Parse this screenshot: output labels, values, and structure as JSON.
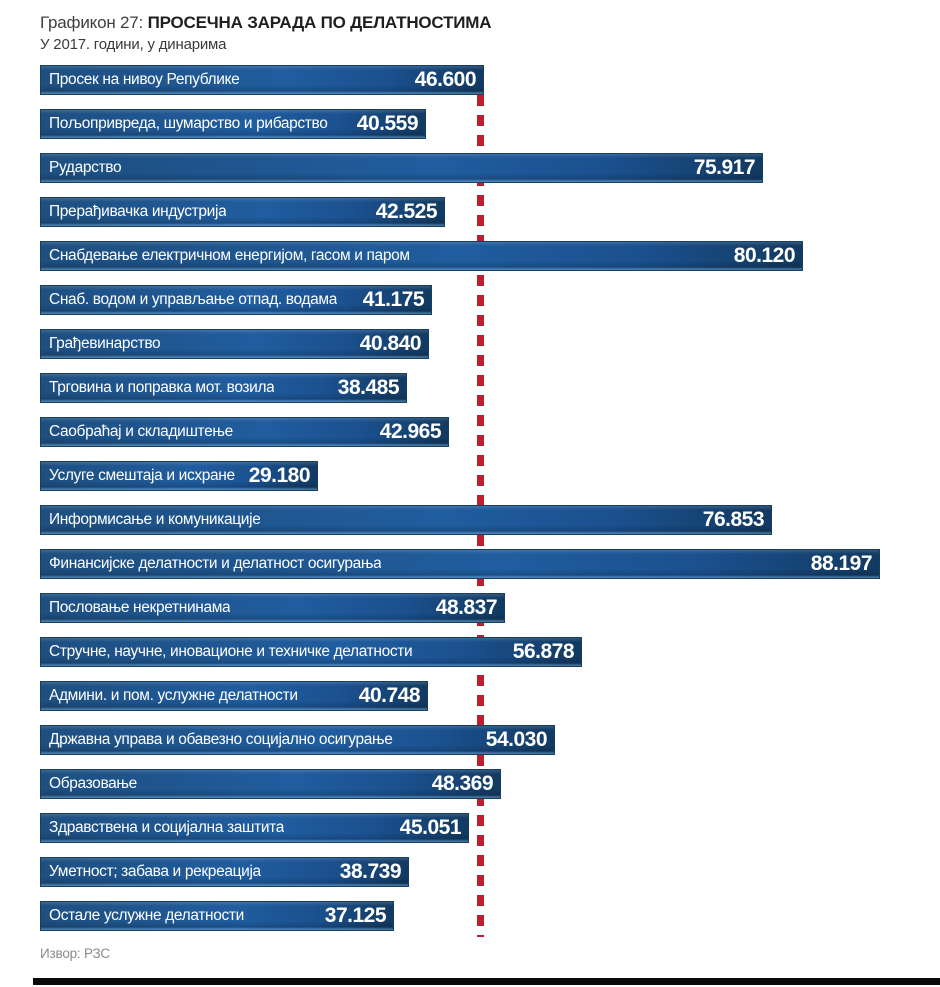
{
  "header": {
    "prefix": "Графикон 27: ",
    "title": "ПРОСЕЧНА ЗАРАДА ПО ДЕЛАТНОСТИМА",
    "subtitle": "У 2017. години, у динарима"
  },
  "footer": {
    "source": "Извор: РЗС"
  },
  "colors": {
    "bar_dark": "#123a61",
    "bar_mid": "#205d9f",
    "bar_left": "#1e4f80",
    "reference_line": "#be1e2d",
    "text_on_bar": "#ffffff",
    "source_text": "#8a8a8a",
    "bottom_rule": "#0a0a0a"
  },
  "chart_data": {
    "type": "bar",
    "orientation": "horizontal",
    "title": "ПРОСЕЧНА ЗАРАДА ПО ДЕЛАТНОСТИМА",
    "subtitle": "У 2017. години, у динарима",
    "unit": "динари",
    "reference_line": {
      "value": 46600,
      "meaning": "Просек на нивоу Републике",
      "style": "red-dashed-vertical"
    },
    "categories": [
      "Просек на нивоу Републике",
      "Пољопривреда, шумарство и рибарство",
      "Рударство",
      "Прерађивачка индустрија",
      "Снабдевање електричном енергијом, гасом и паром",
      "Снаб. водом и управљање отпад. водама",
      "Грађевинарство",
      "Трговина и поправка мот. возила",
      "Саобраћај и складиштење",
      "Услуге смештаја и исхране",
      "Информисање и комуникације",
      "Финансијске делатности и делатност осигурања",
      "Пословање некретнинама",
      "Стручне, научне, иновационе и техничке делатности",
      "Админи. и пом. услужне делатности",
      "Државна управа и обавезно социјално осигурање",
      "Образовање",
      "Здравствена и социјална заштита",
      "Уметност; забава и рекреација",
      "Остале услужне делатности"
    ],
    "values": [
      46600,
      40559,
      75917,
      42525,
      80120,
      41175,
      40840,
      38485,
      42965,
      29180,
      76853,
      88197,
      48837,
      56878,
      40748,
      54030,
      48369,
      45051,
      38739,
      37125
    ],
    "value_labels": [
      "46.600",
      "40.559",
      "75.917",
      "42.525",
      "80.120",
      "41.175",
      "40.840",
      "38.485",
      "42.965",
      "29.180",
      "76.853",
      "88.197",
      "48.837",
      "56.878",
      "40.748",
      "54.030",
      "48.369",
      "45.051",
      "38.739",
      "37.125"
    ],
    "xlim": [
      0,
      93000
    ],
    "legend": "none",
    "grid": "off"
  }
}
